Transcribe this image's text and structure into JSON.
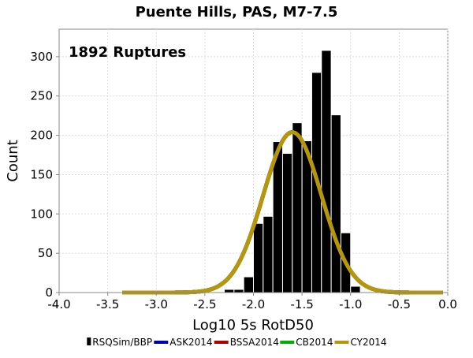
{
  "chart_data": {
    "type": "bar",
    "title": "Puente Hills, PAS, M7-7.5",
    "annotation": "1892 Ruptures",
    "xlabel": "Log10 5s RotD50",
    "ylabel": "Count",
    "xlim": [
      -4.0,
      0.0
    ],
    "ylim": [
      0,
      335
    ],
    "xticks": [
      "-4.0",
      "-3.5",
      "-3.0",
      "-2.5",
      "-2.0",
      "-1.5",
      "-1.0",
      "-0.5",
      "0.0"
    ],
    "yticks": [
      "0",
      "50",
      "100",
      "150",
      "200",
      "250",
      "300"
    ],
    "grid": true,
    "legend_position": "bottom",
    "histogram": {
      "name": "RSQSim/BBP",
      "color": "#000000",
      "bin_width": 0.1,
      "bin_starts": [
        -2.3,
        -2.2,
        -2.1,
        -2.0,
        -1.9,
        -1.8,
        -1.7,
        -1.6,
        -1.5,
        -1.4,
        -1.3,
        -1.2,
        -1.1,
        -1.0
      ],
      "values": [
        4,
        4,
        20,
        88,
        97,
        192,
        177,
        216,
        193,
        280,
        308,
        226,
        76,
        8
      ]
    },
    "curves": {
      "start_x": -3.35,
      "end_x": -0.05,
      "mean": -1.6,
      "peak": 204,
      "sigma": 0.3,
      "series": [
        {
          "name": "ASK2014",
          "color": "#0000b0"
        },
        {
          "name": "BSSA2014",
          "color": "#b00000"
        },
        {
          "name": "CB2014",
          "color": "#00b000"
        },
        {
          "name": "CY2014",
          "color": "#b8960c"
        }
      ]
    }
  }
}
